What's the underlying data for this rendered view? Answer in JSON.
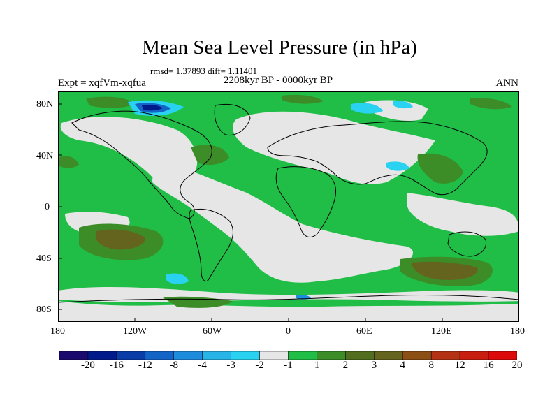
{
  "title": "Mean Sea Level Pressure (in hPa)",
  "stats": "rmsd= 1.37893 diff= 1.11401",
  "subtitle": "2208kyr BP - 0000kyr BP",
  "expt": "Expt = xqfVm-xqfua",
  "season": "ANN",
  "lat_labels": [
    "80N",
    "40N",
    "0",
    "40S",
    "80S"
  ],
  "lon_labels": [
    "180",
    "120W",
    "60W",
    "0",
    "60E",
    "120E",
    "180"
  ],
  "colorbar": {
    "labels": [
      "-20",
      "-16",
      "-12",
      "-8",
      "-4",
      "-3",
      "-2",
      "-1",
      "1",
      "2",
      "3",
      "4",
      "8",
      "12",
      "16",
      "20"
    ],
    "colors": [
      "#1a0a6e",
      "#001a8c",
      "#0a3ca8",
      "#1464c8",
      "#1e8cdc",
      "#28b4e6",
      "#28d2f0",
      "#e6e6e6",
      "#20be46",
      "#3c8c28",
      "#506e1e",
      "#64641e",
      "#8c5014",
      "#b43214",
      "#c81e10",
      "#dc0a0a"
    ]
  },
  "colors": {
    "land_sea_neutral": "#e6e6e6",
    "positive_light": "#20be46",
    "positive_mid": "#3c8c28",
    "positive_dark": "#64641e",
    "negative_light": "#28d2f0",
    "negative_mid": "#1e8cdc",
    "negative_dark": "#0a3ca8"
  }
}
